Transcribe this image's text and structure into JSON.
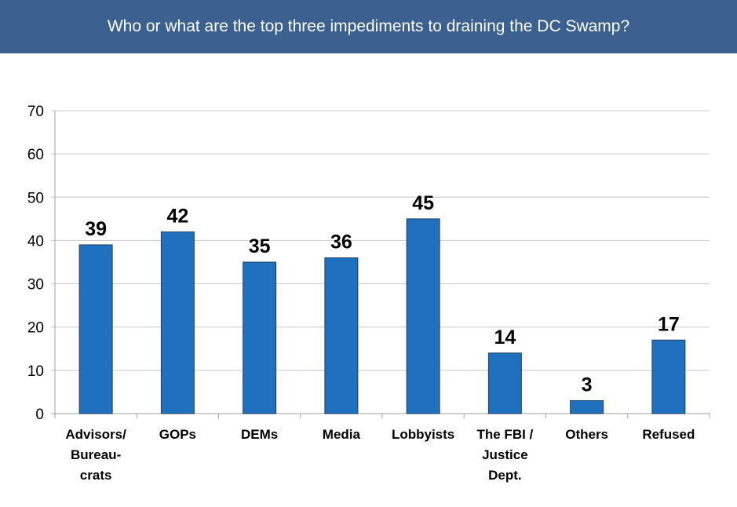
{
  "header": {
    "title": "Who or what are the top three impediments to draining the DC Swamp?"
  },
  "chart_data": {
    "type": "bar",
    "title": "Who or what are the top three impediments to draining the DC Swamp?",
    "categories": [
      "Advisors/\nBureau-\ncrats",
      "GOPs",
      "DEMs",
      "Media",
      "Lobbyists",
      "The FBI /\nJustice\nDept.",
      "Others",
      "Refused"
    ],
    "values": [
      39,
      42,
      35,
      36,
      45,
      14,
      3,
      17
    ],
    "data_labels": [
      "39",
      "42",
      "35",
      "36",
      "45",
      "14",
      "3",
      "17"
    ],
    "yticks": [
      "0",
      "10",
      "20",
      "30",
      "40",
      "50",
      "60",
      "70"
    ],
    "ylim": [
      0,
      70
    ],
    "grid": true,
    "legend": "none",
    "xlabel": "",
    "ylabel": "",
    "colors": {
      "bar": "#1f70bf",
      "bar_border": "#23405e",
      "grid": "#c8c8c8",
      "title_bar": "#3a618f"
    }
  }
}
